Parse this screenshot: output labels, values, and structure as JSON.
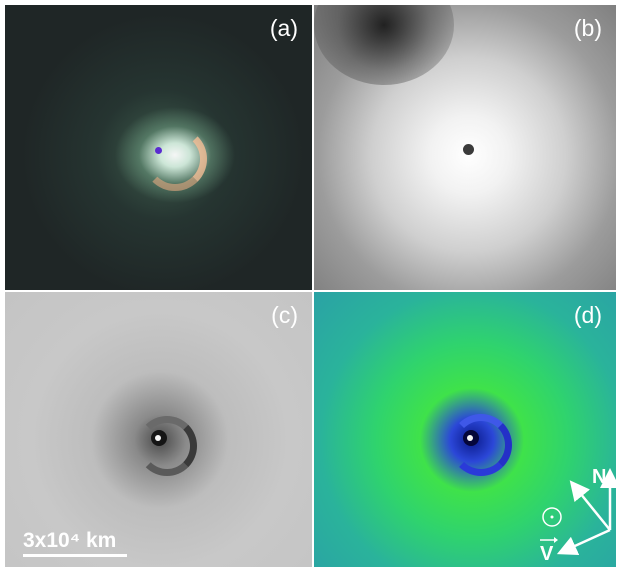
{
  "panels": {
    "a": {
      "label": "(a)"
    },
    "b": {
      "label": "(b)"
    },
    "c": {
      "label": "(c)"
    },
    "d": {
      "label": "(d)"
    }
  },
  "scale_bar": {
    "text": "3x10⁴ km"
  },
  "directions": {
    "north": "N",
    "velocity": "V"
  },
  "sun_symbol": "☉"
}
